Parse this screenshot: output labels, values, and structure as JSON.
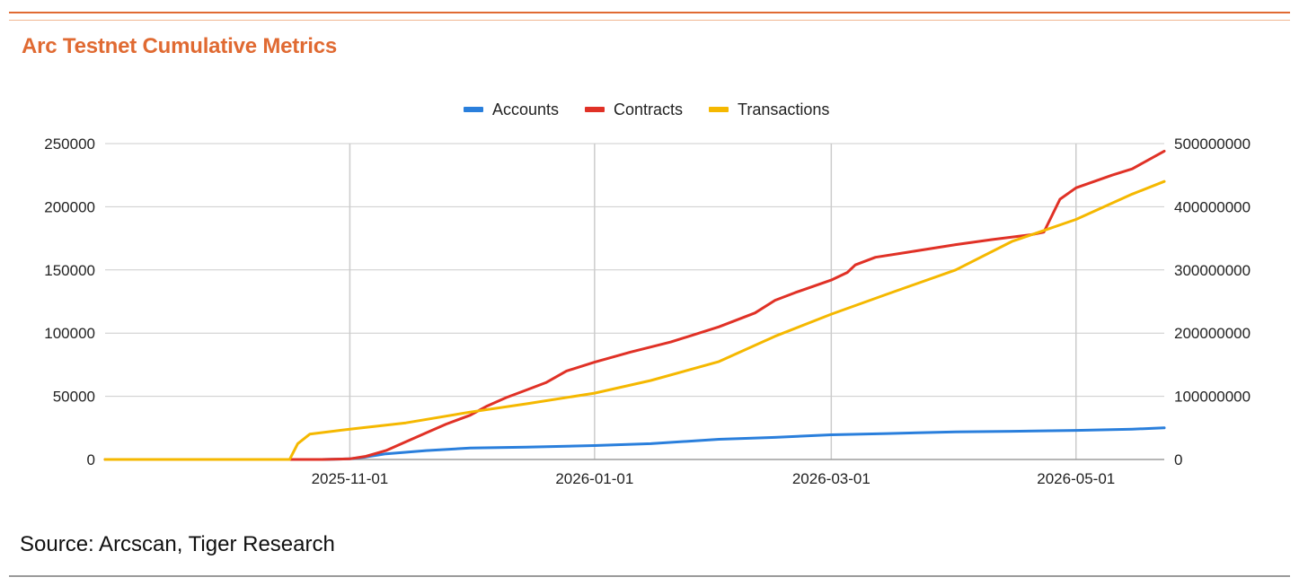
{
  "page": {
    "title": "Arc Testnet Cumulative Metrics",
    "source": "Source: Arcscan, Tiger Research"
  },
  "colors": {
    "accent": "#e06a32",
    "grid": "#cccccc",
    "axis": "#9e9e9e"
  },
  "chart_data": {
    "type": "line",
    "title": "Arc Testnet Cumulative Metrics",
    "x_axis": {
      "type": "date",
      "range": [
        "2025-09-01",
        "2026-05-23"
      ],
      "ticks": [
        "2025-11-01",
        "2026-01-01",
        "2026-03-01",
        "2026-05-01"
      ]
    },
    "y_axis_left": {
      "range": [
        0,
        250000
      ],
      "ticks": [
        0,
        50000,
        100000,
        150000,
        200000,
        250000
      ],
      "tick_labels": [
        "0",
        "50000",
        "100000",
        "150000",
        "200000",
        "250000"
      ]
    },
    "y_axis_right": {
      "range": [
        0,
        500000000
      ],
      "ticks": [
        0,
        100000000,
        200000000,
        300000000,
        400000000,
        500000000
      ],
      "tick_labels": [
        "0",
        "100000000",
        "200000000",
        "300000000",
        "400000000",
        "500000000"
      ]
    },
    "grid": true,
    "legend": "top-center",
    "series": [
      {
        "name": "Accounts",
        "axis": "left",
        "color": "#2a7fdc",
        "points": [
          [
            "2025-09-01",
            0
          ],
          [
            "2025-10-20",
            0
          ],
          [
            "2025-10-25",
            0
          ],
          [
            "2025-11-01",
            500
          ],
          [
            "2025-11-05",
            2000
          ],
          [
            "2025-11-10",
            4500
          ],
          [
            "2025-11-20",
            7000
          ],
          [
            "2025-12-01",
            9000
          ],
          [
            "2025-12-15",
            9800
          ],
          [
            "2026-01-01",
            11000
          ],
          [
            "2026-01-15",
            12500
          ],
          [
            "2026-02-01",
            16000
          ],
          [
            "2026-02-15",
            17500
          ],
          [
            "2026-03-01",
            19500
          ],
          [
            "2026-03-15",
            20500
          ],
          [
            "2026-04-01",
            21800
          ],
          [
            "2026-04-15",
            22300
          ],
          [
            "2026-05-01",
            23000
          ],
          [
            "2026-05-15",
            24000
          ],
          [
            "2026-05-23",
            25000
          ]
        ]
      },
      {
        "name": "Contracts",
        "axis": "left",
        "color": "#e03126",
        "points": [
          [
            "2025-09-01",
            0
          ],
          [
            "2025-10-25",
            0
          ],
          [
            "2025-11-01",
            500
          ],
          [
            "2025-11-05",
            2500
          ],
          [
            "2025-11-10",
            7000
          ],
          [
            "2025-11-15",
            14000
          ],
          [
            "2025-11-20",
            21000
          ],
          [
            "2025-11-25",
            28000
          ],
          [
            "2025-12-01",
            35000
          ],
          [
            "2025-12-05",
            42000
          ],
          [
            "2025-12-10",
            49000
          ],
          [
            "2025-12-15",
            55000
          ],
          [
            "2025-12-20",
            61000
          ],
          [
            "2025-12-25",
            70000
          ],
          [
            "2026-01-01",
            77000
          ],
          [
            "2026-01-10",
            85000
          ],
          [
            "2026-01-20",
            93000
          ],
          [
            "2026-02-01",
            105000
          ],
          [
            "2026-02-10",
            116000
          ],
          [
            "2026-02-15",
            126000
          ],
          [
            "2026-02-20",
            132000
          ],
          [
            "2026-03-01",
            142000
          ],
          [
            "2026-03-05",
            148000
          ],
          [
            "2026-03-07",
            154000
          ],
          [
            "2026-03-12",
            160000
          ],
          [
            "2026-03-20",
            164000
          ],
          [
            "2026-04-01",
            170000
          ],
          [
            "2026-04-10",
            174000
          ],
          [
            "2026-04-20",
            178000
          ],
          [
            "2026-04-23",
            180000
          ],
          [
            "2026-04-27",
            206000
          ],
          [
            "2026-05-01",
            215000
          ],
          [
            "2026-05-10",
            225000
          ],
          [
            "2026-05-15",
            230000
          ],
          [
            "2026-05-23",
            244000
          ]
        ]
      },
      {
        "name": "Transactions",
        "axis": "right",
        "color": "#f5b800",
        "points": [
          [
            "2025-09-01",
            0
          ],
          [
            "2025-10-17",
            0
          ],
          [
            "2025-10-19",
            25000000
          ],
          [
            "2025-10-22",
            40000000
          ],
          [
            "2025-11-01",
            48000000
          ],
          [
            "2025-11-15",
            58000000
          ],
          [
            "2025-12-01",
            75000000
          ],
          [
            "2025-12-15",
            88000000
          ],
          [
            "2026-01-01",
            105000000
          ],
          [
            "2026-01-15",
            125000000
          ],
          [
            "2026-02-01",
            155000000
          ],
          [
            "2026-02-15",
            195000000
          ],
          [
            "2026-03-01",
            230000000
          ],
          [
            "2026-03-15",
            262000000
          ],
          [
            "2026-04-01",
            300000000
          ],
          [
            "2026-04-15",
            345000000
          ],
          [
            "2026-05-01",
            380000000
          ],
          [
            "2026-05-15",
            420000000
          ],
          [
            "2026-05-23",
            440000000
          ]
        ]
      }
    ]
  }
}
